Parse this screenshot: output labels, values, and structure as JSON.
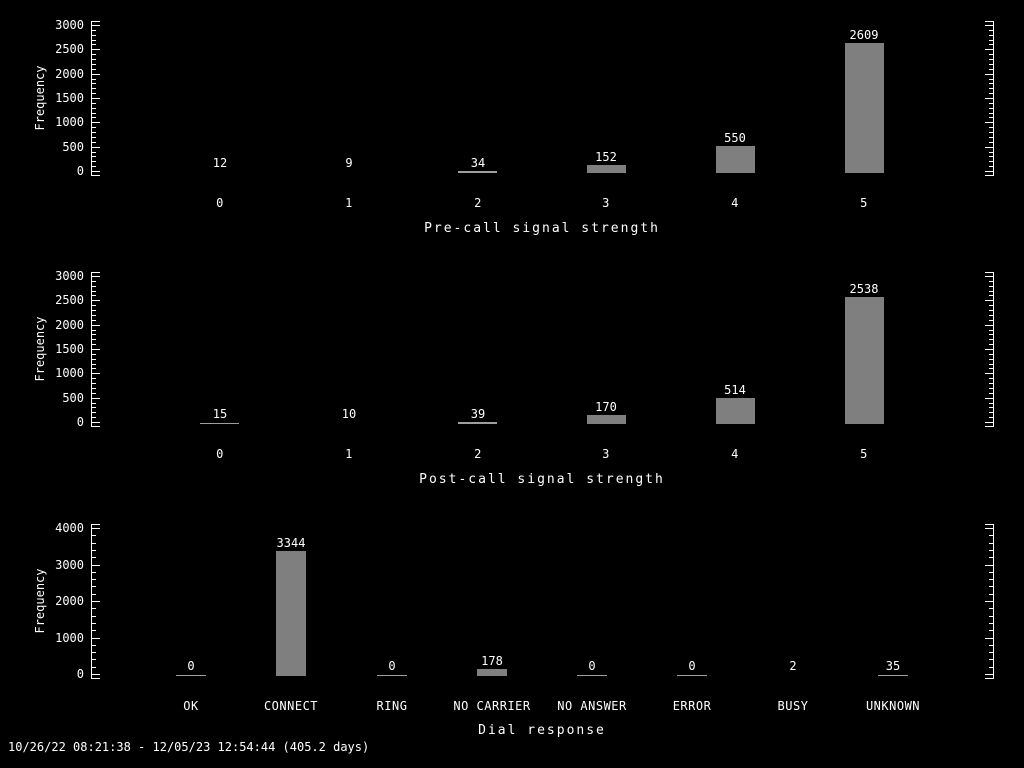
{
  "colors": {
    "background": "#000000",
    "foreground": "#ffffff",
    "bar": "#7f7f7f",
    "thin_mark": "#9e9e9e"
  },
  "footer": {
    "text": "10/26/22 08:21:38 - 12/05/23 12:54:44 (405.2 days)"
  },
  "chart_data": [
    {
      "type": "bar",
      "title": "Pre-call signal strength",
      "ylabel": "Frequency",
      "xlabel": "",
      "categories": [
        "0",
        "1",
        "2",
        "3",
        "4",
        "5"
      ],
      "values": [
        12,
        9,
        34,
        152,
        550,
        2609
      ],
      "ylim": [
        0,
        3000
      ],
      "yticks": [
        0,
        500,
        1000,
        1500,
        2000,
        2500,
        3000
      ],
      "minor_ticks_per_interval": 4,
      "grid": "off",
      "legend": "none",
      "value_labels": true,
      "bar_color": "#7f7f7f"
    },
    {
      "type": "bar",
      "title": "Post-call signal strength",
      "ylabel": "Frequency",
      "xlabel": "",
      "categories": [
        "0",
        "1",
        "2",
        "3",
        "4",
        "5"
      ],
      "values": [
        15,
        10,
        39,
        170,
        514,
        2538
      ],
      "ylim": [
        0,
        3000
      ],
      "yticks": [
        0,
        500,
        1000,
        1500,
        2000,
        2500,
        3000
      ],
      "minor_ticks_per_interval": 4,
      "grid": "off",
      "legend": "none",
      "value_labels": true,
      "bar_color": "#7f7f7f"
    },
    {
      "type": "bar",
      "title": "Dial response",
      "ylabel": "Frequency",
      "xlabel": "",
      "categories": [
        "OK",
        "CONNECT",
        "RING",
        "NO CARRIER",
        "NO ANSWER",
        "ERROR",
        "BUSY",
        "UNKNOWN"
      ],
      "values": [
        0,
        3344,
        0,
        178,
        0,
        0,
        2,
        35
      ],
      "ylim": [
        0,
        4000
      ],
      "yticks": [
        0,
        1000,
        2000,
        3000,
        4000
      ],
      "minor_ticks_per_interval": 4,
      "grid": "off",
      "legend": "none",
      "value_labels": true,
      "bar_color": "#7f7f7f"
    }
  ]
}
